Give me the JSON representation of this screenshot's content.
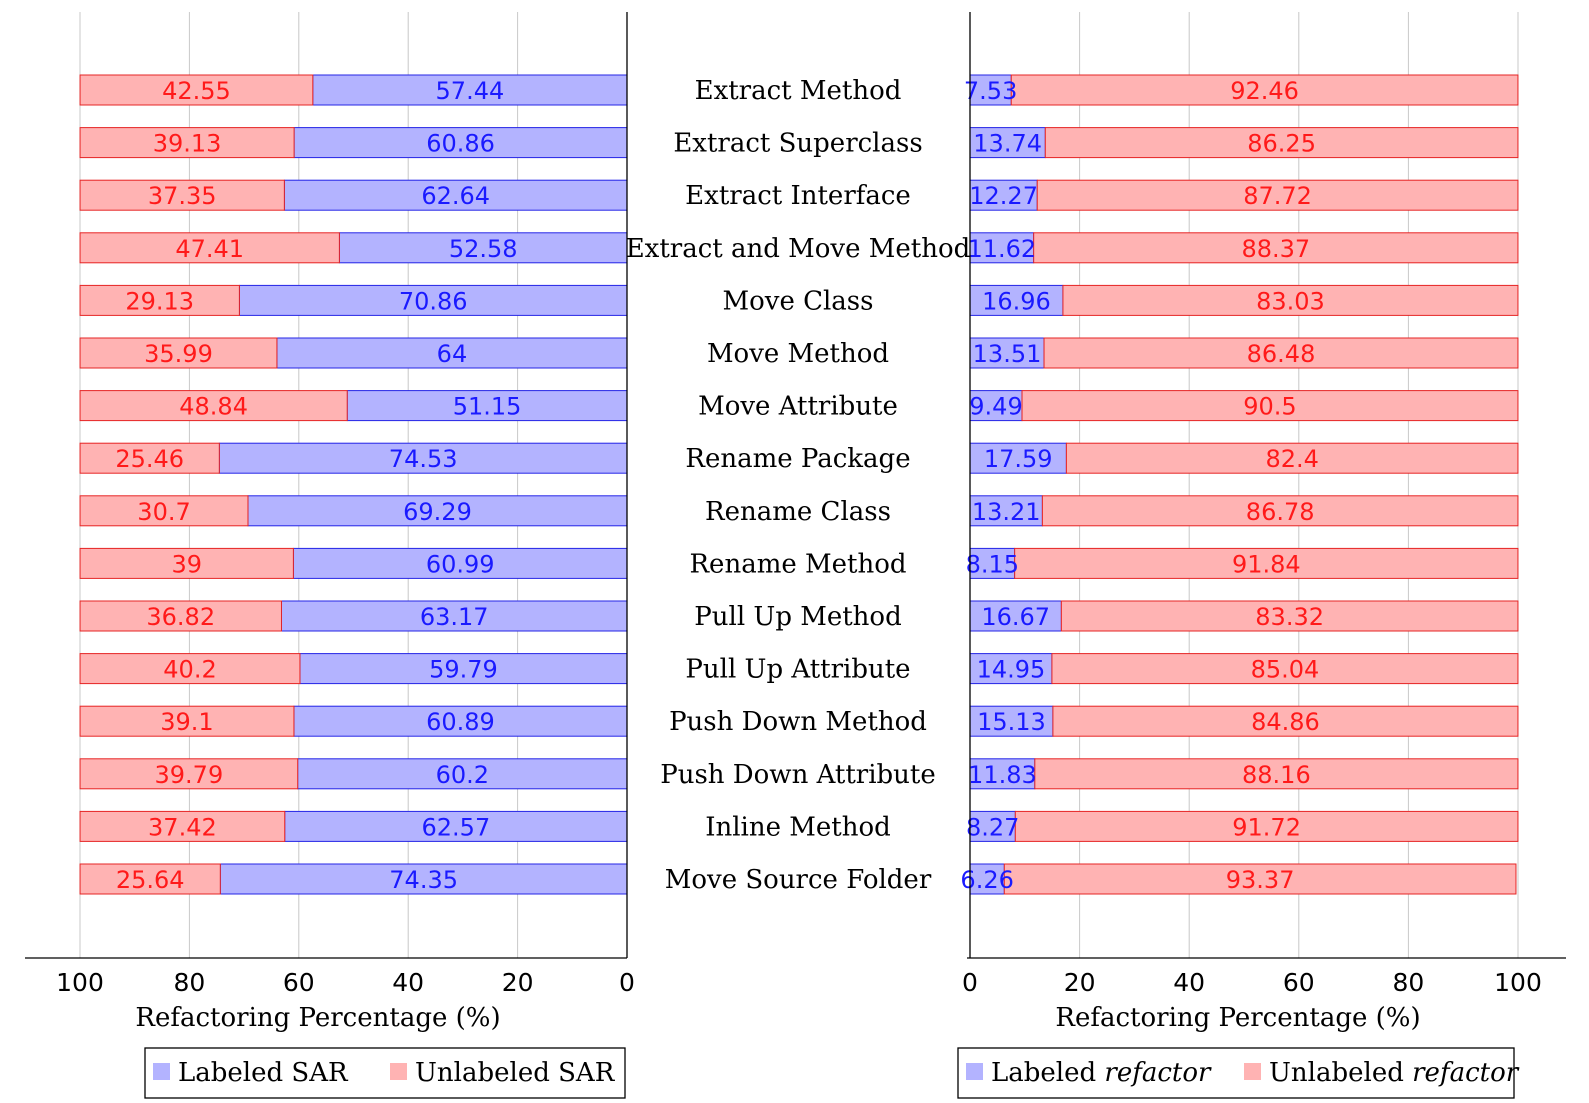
{
  "colors": {
    "labeled_fill": "#b3b3ff",
    "labeled_stroke": "#2424e6",
    "labeled_text": "#1a1aff",
    "unlabeled_fill": "#ffb3b3",
    "unlabeled_stroke": "#e62424",
    "unlabeled_text": "#ff1a1a",
    "grid": "#c8c8c8",
    "axis": "#000000"
  },
  "chart_data": [
    {
      "type": "bar",
      "orientation": "horizontal",
      "stacked": true,
      "x_reversed": true,
      "xlabel": "Refactoring Percentage (%)",
      "xlim": [
        0,
        100
      ],
      "xticks": [
        "100",
        "80",
        "60",
        "40",
        "20",
        "0"
      ],
      "grid": true,
      "legend_position": "bottom",
      "legend": [
        "Labeled SAR",
        "Unlabeled SAR"
      ],
      "categories": [
        "Extract Method",
        "Extract Superclass",
        "Extract Interface",
        "Extract and Move Method",
        "Move Class",
        "Move Method",
        "Move Attribute",
        "Rename Package",
        "Rename Class",
        "Rename Method",
        "Pull Up Method",
        "Pull Up Attribute",
        "Push Down Method",
        "Push Down Attribute",
        "Inline Method",
        "Move Source Folder"
      ],
      "series": [
        {
          "name": "Labeled SAR",
          "values": [
            57.44,
            60.86,
            62.64,
            52.58,
            70.86,
            64,
            51.15,
            74.53,
            69.29,
            60.99,
            63.17,
            59.79,
            60.89,
            60.2,
            62.57,
            74.35
          ]
        },
        {
          "name": "Unlabeled SAR",
          "values": [
            42.55,
            39.13,
            37.35,
            47.41,
            29.13,
            35.99,
            48.84,
            25.46,
            30.7,
            39,
            36.82,
            40.2,
            39.1,
            39.79,
            37.42,
            25.64
          ]
        }
      ],
      "value_labels": {
        "labeled": [
          "57.44",
          "60.86",
          "62.64",
          "52.58",
          "70.86",
          "64",
          "51.15",
          "74.53",
          "69.29",
          "60.99",
          "63.17",
          "59.79",
          "60.89",
          "60.2",
          "62.57",
          "74.35"
        ],
        "unlabeled": [
          "42.55",
          "39.13",
          "37.35",
          "47.41",
          "29.13",
          "35.99",
          "48.84",
          "25.46",
          "30.7",
          "39",
          "36.82",
          "40.2",
          "39.1",
          "39.79",
          "37.42",
          "25.64"
        ]
      }
    },
    {
      "type": "bar",
      "orientation": "horizontal",
      "stacked": true,
      "x_reversed": false,
      "xlabel": "Refactoring Percentage (%)",
      "xlim": [
        0,
        100
      ],
      "xticks": [
        "0",
        "20",
        "40",
        "60",
        "80",
        "100"
      ],
      "grid": true,
      "legend_position": "bottom",
      "legend": [
        "Labeled refactor",
        "Unlabeled refactor"
      ],
      "categories": [
        "Extract Method",
        "Extract Superclass",
        "Extract Interface",
        "Extract and Move Method",
        "Move Class",
        "Move Method",
        "Move Attribute",
        "Rename Package",
        "Rename Class",
        "Rename Method",
        "Pull Up Method",
        "Pull Up Attribute",
        "Push Down Method",
        "Push Down Attribute",
        "Inline Method",
        "Move Source Folder"
      ],
      "series": [
        {
          "name": "Labeled refactor",
          "values": [
            7.53,
            13.74,
            12.27,
            11.62,
            16.96,
            13.51,
            9.49,
            17.59,
            13.21,
            8.15,
            16.67,
            14.95,
            15.13,
            11.83,
            8.27,
            6.26
          ]
        },
        {
          "name": "Unlabeled refactor",
          "values": [
            92.46,
            86.25,
            87.72,
            88.37,
            83.03,
            86.48,
            90.5,
            82.4,
            86.78,
            91.84,
            83.32,
            85.04,
            84.86,
            88.16,
            91.72,
            93.37
          ]
        }
      ],
      "value_labels": {
        "labeled": [
          "7.53",
          "13.74",
          "12.27",
          "11.62",
          "16.96",
          "13.51",
          "9.49",
          "17.59",
          "13.21",
          "8.15",
          "16.67",
          "14.95",
          "15.13",
          "11.83",
          "8.27",
          "6.26"
        ],
        "unlabeled": [
          "92.46",
          "86.25",
          "87.72",
          "88.37",
          "83.03",
          "86.48",
          "90.5",
          "82.4",
          "86.78",
          "91.84",
          "83.32",
          "85.04",
          "84.86",
          "88.16",
          "91.72",
          "93.37"
        ]
      }
    }
  ],
  "legend_left": {
    "labeled_text": "Labeled SAR",
    "unlabeled_text": "Unlabeled SAR"
  },
  "legend_right": {
    "labeled_prefix": "Labeled ",
    "unlabeled_prefix": "Unlabeled ",
    "italic_word": "refactor"
  }
}
